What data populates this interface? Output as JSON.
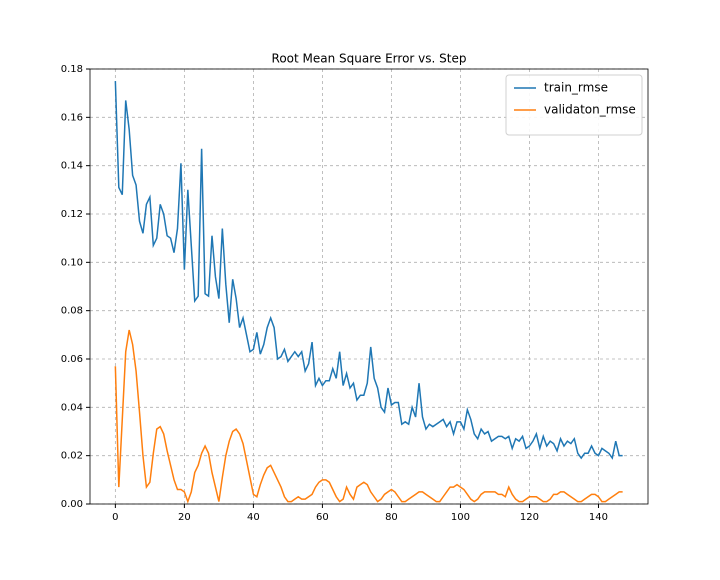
{
  "chart_data": {
    "type": "line",
    "title": "Root Mean Square Error vs. Step",
    "x": [
      0,
      1,
      2,
      3,
      4,
      5,
      6,
      7,
      8,
      9,
      10,
      11,
      12,
      13,
      14,
      15,
      16,
      17,
      18,
      19,
      20,
      21,
      22,
      23,
      24,
      25,
      26,
      27,
      28,
      29,
      30,
      31,
      32,
      33,
      34,
      35,
      36,
      37,
      38,
      39,
      40,
      41,
      42,
      43,
      44,
      45,
      46,
      47,
      48,
      49,
      50,
      51,
      52,
      53,
      54,
      55,
      56,
      57,
      58,
      59,
      60,
      61,
      62,
      63,
      64,
      65,
      66,
      67,
      68,
      69,
      70,
      71,
      72,
      73,
      74,
      75,
      76,
      77,
      78,
      79,
      80,
      81,
      82,
      83,
      84,
      85,
      86,
      87,
      88,
      89,
      90,
      91,
      92,
      93,
      94,
      95,
      96,
      97,
      98,
      99,
      100,
      101,
      102,
      103,
      104,
      105,
      106,
      107,
      108,
      109,
      110,
      111,
      112,
      113,
      114,
      115,
      116,
      117,
      118,
      119,
      120,
      121,
      122,
      123,
      124,
      125,
      126,
      127,
      128,
      129,
      130,
      131,
      132,
      133,
      134,
      135,
      136,
      137,
      138,
      139,
      140,
      141,
      142,
      143,
      144,
      145,
      146,
      147
    ],
    "series": [
      {
        "name": "train_rmse",
        "color": "#1f77b4",
        "values": [
          0.175,
          0.131,
          0.128,
          0.167,
          0.155,
          0.136,
          0.132,
          0.117,
          0.112,
          0.124,
          0.127,
          0.107,
          0.11,
          0.124,
          0.12,
          0.111,
          0.11,
          0.104,
          0.114,
          0.141,
          0.097,
          0.13,
          0.107,
          0.084,
          0.086,
          0.147,
          0.087,
          0.086,
          0.111,
          0.094,
          0.085,
          0.114,
          0.091,
          0.075,
          0.093,
          0.085,
          0.073,
          0.077,
          0.07,
          0.063,
          0.064,
          0.071,
          0.062,
          0.066,
          0.073,
          0.077,
          0.073,
          0.06,
          0.061,
          0.064,
          0.059,
          0.061,
          0.063,
          0.061,
          0.063,
          0.055,
          0.058,
          0.067,
          0.049,
          0.052,
          0.049,
          0.051,
          0.051,
          0.056,
          0.052,
          0.063,
          0.049,
          0.054,
          0.048,
          0.05,
          0.043,
          0.045,
          0.045,
          0.05,
          0.065,
          0.052,
          0.048,
          0.04,
          0.038,
          0.048,
          0.041,
          0.042,
          0.042,
          0.033,
          0.034,
          0.033,
          0.04,
          0.036,
          0.05,
          0.036,
          0.031,
          0.033,
          0.032,
          0.033,
          0.034,
          0.035,
          0.032,
          0.034,
          0.029,
          0.034,
          0.034,
          0.031,
          0.039,
          0.035,
          0.029,
          0.027,
          0.031,
          0.029,
          0.03,
          0.026,
          0.027,
          0.028,
          0.028,
          0.027,
          0.028,
          0.023,
          0.027,
          0.026,
          0.028,
          0.023,
          0.024,
          0.026,
          0.029,
          0.023,
          0.028,
          0.024,
          0.026,
          0.025,
          0.022,
          0.027,
          0.024,
          0.026,
          0.025,
          0.027,
          0.021,
          0.019,
          0.021,
          0.021,
          0.024,
          0.021,
          0.02,
          0.023,
          0.022,
          0.021,
          0.019,
          0.026,
          0.02,
          0.02
        ]
      },
      {
        "name": "validaton_rmse",
        "color": "#ff7f0e",
        "values": [
          0.057,
          0.007,
          0.035,
          0.063,
          0.072,
          0.066,
          0.055,
          0.038,
          0.02,
          0.007,
          0.009,
          0.021,
          0.031,
          0.032,
          0.029,
          0.022,
          0.016,
          0.01,
          0.006,
          0.006,
          0.005,
          0.001,
          0.005,
          0.013,
          0.016,
          0.021,
          0.024,
          0.021,
          0.013,
          0.007,
          0.001,
          0.011,
          0.02,
          0.026,
          0.03,
          0.031,
          0.029,
          0.025,
          0.018,
          0.011,
          0.004,
          0.003,
          0.008,
          0.012,
          0.015,
          0.016,
          0.013,
          0.01,
          0.007,
          0.003,
          0.001,
          0.001,
          0.002,
          0.003,
          0.002,
          0.002,
          0.003,
          0.004,
          0.007,
          0.009,
          0.01,
          0.01,
          0.009,
          0.006,
          0.003,
          0.001,
          0.002,
          0.007,
          0.004,
          0.002,
          0.007,
          0.008,
          0.009,
          0.008,
          0.005,
          0.003,
          0.001,
          0.002,
          0.004,
          0.005,
          0.006,
          0.005,
          0.003,
          0.001,
          0.001,
          0.002,
          0.003,
          0.004,
          0.005,
          0.005,
          0.004,
          0.003,
          0.002,
          0.001,
          0.001,
          0.003,
          0.005,
          0.007,
          0.007,
          0.008,
          0.007,
          0.006,
          0.004,
          0.002,
          0.001,
          0.002,
          0.004,
          0.005,
          0.005,
          0.005,
          0.005,
          0.004,
          0.004,
          0.003,
          0.007,
          0.004,
          0.002,
          0.001,
          0.001,
          0.002,
          0.003,
          0.003,
          0.003,
          0.002,
          0.001,
          0.001,
          0.002,
          0.004,
          0.004,
          0.005,
          0.005,
          0.004,
          0.003,
          0.002,
          0.001,
          0.001,
          0.002,
          0.003,
          0.004,
          0.004,
          0.003,
          0.001,
          0.001,
          0.002,
          0.003,
          0.004,
          0.005,
          0.005
        ]
      }
    ],
    "xlim": [
      -7.35,
      154.35
    ],
    "xticks": [
      0,
      20,
      40,
      60,
      80,
      100,
      120,
      140
    ],
    "ylim": [
      0,
      0.18
    ],
    "yticks": [
      {
        "value": 0,
        "label": "0.00"
      },
      0.02,
      0.04,
      0.06,
      0.08,
      {
        "value": 0.1,
        "label": "0.10"
      },
      0.12,
      0.14,
      0.16,
      0.18
    ],
    "grid": true,
    "legend": "upper right"
  }
}
